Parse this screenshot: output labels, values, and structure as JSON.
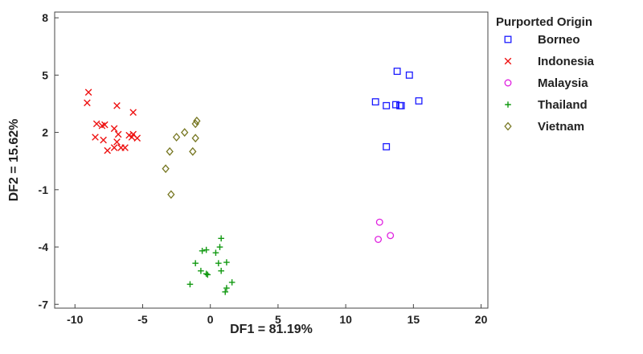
{
  "chart_data": {
    "type": "scatter",
    "xlabel": "DF1 = 81.19%",
    "ylabel": "DF2 = 15.62%",
    "xlim": [
      -11.5,
      20.5
    ],
    "ylim": [
      -7.2,
      8.3
    ],
    "xticks": [
      -10,
      -5,
      0,
      5,
      10,
      15,
      20
    ],
    "yticks": [
      -7,
      -4,
      -1,
      2,
      5,
      8
    ],
    "grid": false,
    "legend": {
      "title": "Purported Origin",
      "placement": "right"
    },
    "series": [
      {
        "name": "Borneo",
        "marker": "square",
        "color": "#1a1aff",
        "points": [
          [
            12.2,
            3.6
          ],
          [
            13.0,
            3.4
          ],
          [
            13.8,
            5.2
          ],
          [
            14.7,
            5.0
          ],
          [
            15.4,
            3.65
          ],
          [
            13.7,
            3.45
          ],
          [
            14.0,
            3.4
          ],
          [
            14.1,
            3.4
          ],
          [
            13.0,
            1.25
          ]
        ]
      },
      {
        "name": "Indonesia",
        "marker": "x",
        "color": "#ee1111",
        "points": [
          [
            -9.0,
            4.1
          ],
          [
            -9.1,
            3.55
          ],
          [
            -8.4,
            2.45
          ],
          [
            -8.0,
            2.35
          ],
          [
            -7.8,
            2.4
          ],
          [
            -6.9,
            3.4
          ],
          [
            -7.1,
            2.2
          ],
          [
            -5.7,
            3.05
          ],
          [
            -8.5,
            1.75
          ],
          [
            -7.9,
            1.6
          ],
          [
            -7.6,
            1.05
          ],
          [
            -7.1,
            1.2
          ],
          [
            -6.9,
            1.5
          ],
          [
            -6.6,
            1.2
          ],
          [
            -6.3,
            1.2
          ],
          [
            -6.0,
            1.85
          ],
          [
            -5.7,
            1.9
          ],
          [
            -5.8,
            1.75
          ],
          [
            -5.4,
            1.7
          ],
          [
            -6.8,
            1.9
          ]
        ]
      },
      {
        "name": "Malaysia",
        "marker": "circle",
        "color": "#e020e0",
        "points": [
          [
            12.5,
            -2.7
          ],
          [
            12.4,
            -3.6
          ],
          [
            13.3,
            -3.4
          ]
        ]
      },
      {
        "name": "Thailand",
        "marker": "plus",
        "color": "#119911",
        "points": [
          [
            0.8,
            -3.55
          ],
          [
            0.7,
            -4.0
          ],
          [
            -0.6,
            -4.2
          ],
          [
            -0.3,
            -4.15
          ],
          [
            0.4,
            -4.3
          ],
          [
            -1.1,
            -4.85
          ],
          [
            0.6,
            -4.85
          ],
          [
            1.2,
            -4.8
          ],
          [
            -0.7,
            -5.25
          ],
          [
            -0.2,
            -5.45
          ],
          [
            -0.3,
            -5.4
          ],
          [
            0.8,
            -5.25
          ],
          [
            1.6,
            -5.85
          ],
          [
            -1.5,
            -5.95
          ],
          [
            1.2,
            -6.15
          ],
          [
            1.1,
            -6.35
          ]
        ]
      },
      {
        "name": "Vietnam",
        "marker": "diamond",
        "color": "#777722",
        "points": [
          [
            -1.0,
            2.6
          ],
          [
            -1.1,
            2.45
          ],
          [
            -1.9,
            2.0
          ],
          [
            -2.5,
            1.75
          ],
          [
            -1.1,
            1.7
          ],
          [
            -3.0,
            1.0
          ],
          [
            -1.3,
            1.0
          ],
          [
            -3.3,
            0.1
          ],
          [
            -2.9,
            -1.25
          ]
        ]
      }
    ]
  }
}
